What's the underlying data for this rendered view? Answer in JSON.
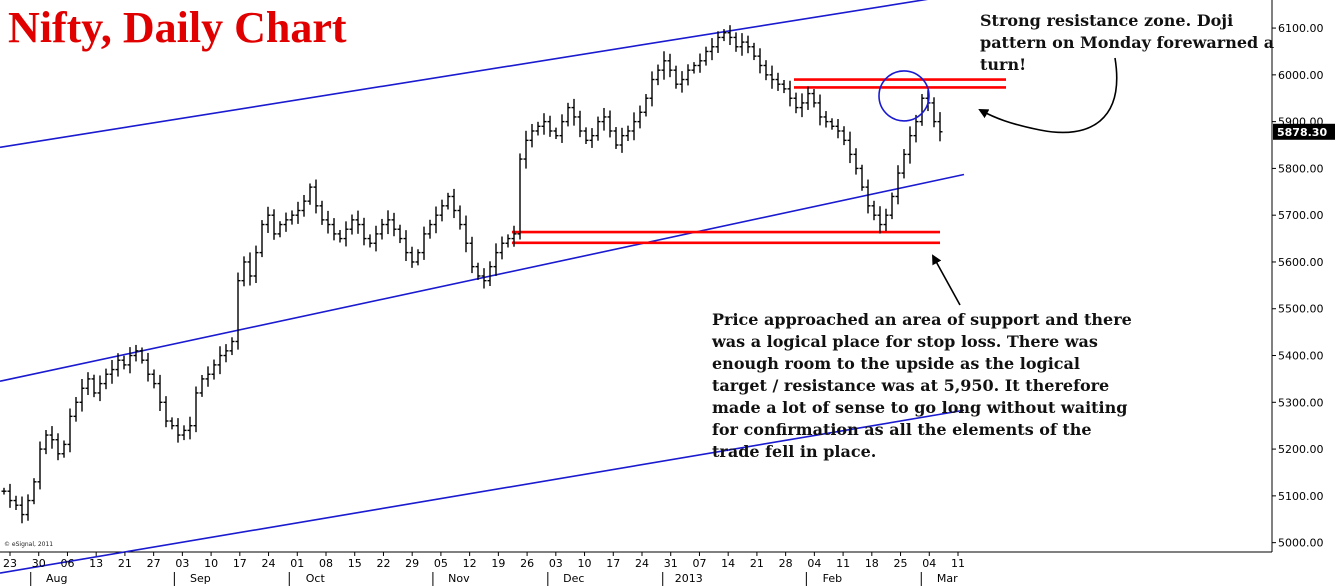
{
  "title": "Nifty, Daily Chart",
  "copyright": "© eSignal, 2011",
  "annotations": {
    "resistance_note": "Strong resistance zone. Doji pattern on Monday forewarned a turn!",
    "support_note": "Price approached an area of support and there was a logical place for stop loss. There was enough room to the upside as the logical target / resistance was at 5,950. It therefore made a lot of sense to go long without waiting for confirmation as all the elements of the trade fell in place."
  },
  "colors": {
    "price_bars": "#000000",
    "channel_lines": "#1a1ad0",
    "support_resistance_lines": "#ff0000",
    "circle": "#1a1ad0",
    "title": "#e00000",
    "last_price_label_bg": "#000000"
  },
  "chart_data": {
    "type": "ohlc",
    "title": "Nifty, Daily Chart",
    "ylim": [
      4980,
      6160
    ],
    "y_ticks": [
      5000,
      5100,
      5200,
      5300,
      5400,
      5500,
      5600,
      5700,
      5800,
      5900,
      6000,
      6100
    ],
    "y_tick_labels": [
      "5000.00",
      "5100.00",
      "5200.00",
      "5300.00",
      "5400.00",
      "5500.00",
      "5600.00",
      "5700.00",
      "5800.00",
      "5900.00",
      "6000.00",
      "6100.00"
    ],
    "last_price": "5878.30",
    "x_tick_labels": [
      "23",
      "30",
      "06",
      "13",
      "21",
      "27",
      "03",
      "10",
      "17",
      "24",
      "01",
      "08",
      "15",
      "22",
      "29",
      "05",
      "12",
      "19",
      "26",
      "03",
      "10",
      "17",
      "24",
      "31",
      "07",
      "14",
      "21",
      "28",
      "04",
      "11",
      "18",
      "25",
      "04",
      "11"
    ],
    "month_labels": [
      "Aug",
      "Sep",
      "Oct",
      "Nov",
      "Dec",
      "2013",
      "Feb",
      "Mar"
    ],
    "grid": false,
    "close_series": [
      5110,
      5090,
      5080,
      5060,
      5090,
      5130,
      5200,
      5230,
      5220,
      5190,
      5210,
      5270,
      5300,
      5330,
      5350,
      5320,
      5340,
      5360,
      5370,
      5390,
      5380,
      5400,
      5410,
      5390,
      5360,
      5340,
      5300,
      5260,
      5250,
      5230,
      5240,
      5250,
      5320,
      5350,
      5360,
      5380,
      5400,
      5410,
      5430,
      5560,
      5600,
      5570,
      5620,
      5680,
      5700,
      5660,
      5680,
      5690,
      5700,
      5710,
      5730,
      5760,
      5720,
      5690,
      5680,
      5660,
      5650,
      5670,
      5690,
      5680,
      5650,
      5640,
      5660,
      5680,
      5690,
      5670,
      5650,
      5620,
      5600,
      5620,
      5660,
      5680,
      5700,
      5720,
      5740,
      5710,
      5680,
      5640,
      5590,
      5570,
      5560,
      5590,
      5620,
      5640,
      5650,
      5660,
      5820,
      5860,
      5880,
      5890,
      5900,
      5880,
      5870,
      5900,
      5930,
      5910,
      5880,
      5860,
      5870,
      5900,
      5910,
      5880,
      5850,
      5870,
      5880,
      5900,
      5920,
      5950,
      5990,
      6010,
      6030,
      6010,
      5980,
      5990,
      6010,
      6020,
      6030,
      6050,
      6060,
      6080,
      6090,
      6080,
      6060,
      6070,
      6060,
      6040,
      6020,
      6000,
      5990,
      5980,
      5970,
      5950,
      5930,
      5940,
      5960,
      5940,
      5910,
      5900,
      5890,
      5880,
      5860,
      5830,
      5800,
      5760,
      5720,
      5700,
      5680,
      5700,
      5740,
      5790,
      5830,
      5870,
      5900,
      5950,
      5940,
      5900,
      5878.3
    ],
    "channel_lines": [
      {
        "name": "upper",
        "from": [
          0,
          5845
        ],
        "to": [
          160,
          6174
        ]
      },
      {
        "name": "middle",
        "from": [
          0,
          5345
        ],
        "to": [
          160,
          5787
        ]
      },
      {
        "name": "lower",
        "from": [
          0,
          4935
        ],
        "to": [
          160,
          5283
        ]
      }
    ],
    "resistance_zone": [
      5973,
      5990
    ],
    "support_zone": [
      5641,
      5664
    ],
    "highlight_circle": {
      "center_index": 150,
      "center_value": 5955
    }
  }
}
